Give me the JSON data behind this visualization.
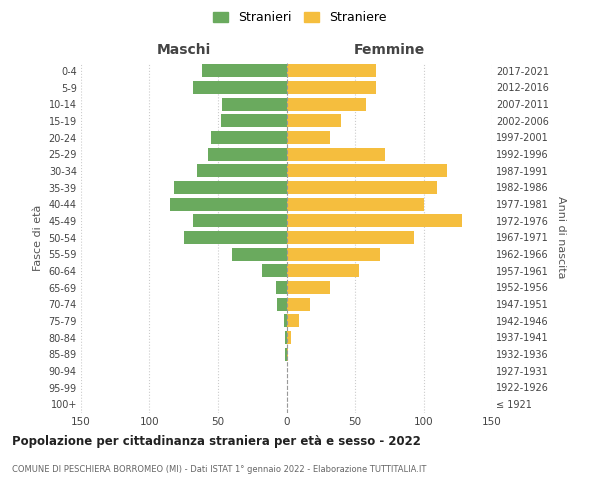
{
  "age_groups": [
    "100+",
    "95-99",
    "90-94",
    "85-89",
    "80-84",
    "75-79",
    "70-74",
    "65-69",
    "60-64",
    "55-59",
    "50-54",
    "45-49",
    "40-44",
    "35-39",
    "30-34",
    "25-29",
    "20-24",
    "15-19",
    "10-14",
    "5-9",
    "0-4"
  ],
  "birth_years": [
    "≤ 1921",
    "1922-1926",
    "1927-1931",
    "1932-1936",
    "1937-1941",
    "1942-1946",
    "1947-1951",
    "1952-1956",
    "1957-1961",
    "1962-1966",
    "1967-1971",
    "1972-1976",
    "1977-1981",
    "1982-1986",
    "1987-1991",
    "1992-1996",
    "1997-2001",
    "2002-2006",
    "2007-2011",
    "2012-2016",
    "2017-2021"
  ],
  "maschi": [
    0,
    0,
    0,
    1,
    1,
    2,
    7,
    8,
    18,
    40,
    75,
    68,
    85,
    82,
    65,
    57,
    55,
    48,
    47,
    68,
    62
  ],
  "femmine": [
    0,
    0,
    0,
    1,
    3,
    9,
    17,
    32,
    53,
    68,
    93,
    128,
    100,
    110,
    117,
    72,
    32,
    40,
    58,
    65,
    65
  ],
  "color_maschi": "#6aaa5e",
  "color_femmine": "#f5be3e",
  "title": "Popolazione per cittadinanza straniera per età e sesso - 2022",
  "subtitle": "COMUNE DI PESCHIERA BORROMEO (MI) - Dati ISTAT 1° gennaio 2022 - Elaborazione TUTTITALIA.IT",
  "ylabel_left": "Fasce di età",
  "ylabel_right": "Anni di nascita",
  "xlabel_left": "Maschi",
  "xlabel_right": "Femmine",
  "legend_maschi": "Stranieri",
  "legend_femmine": "Straniere",
  "xlim": 150,
  "background_color": "#ffffff",
  "grid_color": "#cccccc"
}
